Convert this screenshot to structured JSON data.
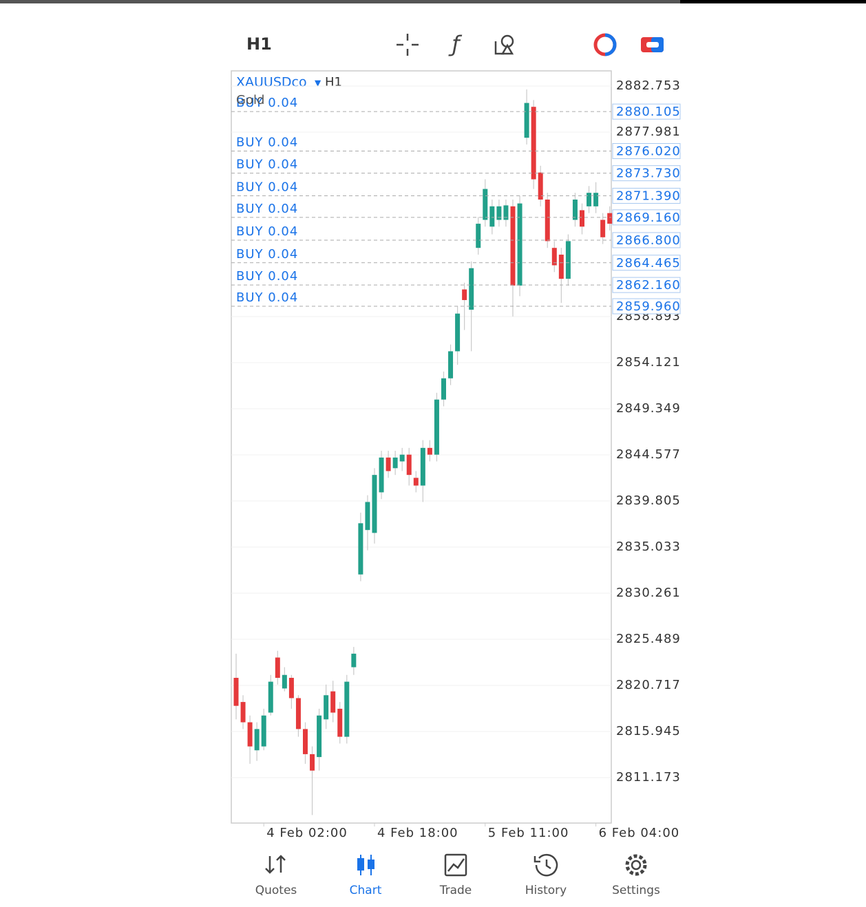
{
  "toolbar": {
    "timeframe": "H1"
  },
  "chart": {
    "type": "candlestick",
    "symbol": "XAUUSDco",
    "timeframe": "H1",
    "description": "Gold",
    "up_color": "#22a08a",
    "down_color": "#e5393b",
    "ylim": [
      2806.47,
      2884.32
    ],
    "yticks": [
      2882.753,
      2877.981,
      2858.893,
      2854.121,
      2849.349,
      2844.577,
      2839.805,
      2835.033,
      2830.261,
      2825.489,
      2820.717,
      2815.945,
      2811.173
    ],
    "orders": [
      {
        "label": "BUY 0.04",
        "price": {
          "value": 2880.105,
          "label": "2880.105"
        }
      },
      {
        "label": "BUY 0.04",
        "price": {
          "value": 2876.02,
          "label": "2876.020"
        }
      },
      {
        "label": "BUY 0.04",
        "price": {
          "value": 2873.73,
          "label": "2873.730"
        }
      },
      {
        "label": "BUY 0.04",
        "price": {
          "value": 2871.39,
          "label": "2871.390"
        }
      },
      {
        "label": "BUY 0.04",
        "price": {
          "value": 2869.16,
          "label": "2869.160"
        }
      },
      {
        "label": "BUY 0.04",
        "price": {
          "value": 2866.8,
          "label": "2866.800"
        }
      },
      {
        "label": "BUY 0.04",
        "price": {
          "value": 2864.465,
          "label": "2864.465"
        }
      },
      {
        "label": "BUY 0.04",
        "price": {
          "value": 2862.16,
          "label": "2862.160"
        }
      },
      {
        "label": "BUY 0.04",
        "price": {
          "value": 2859.96,
          "label": "2859.960"
        }
      }
    ],
    "x_labels": [
      "4 Feb 02:00",
      "4 Feb 18:00",
      "5 Feb 11:00",
      "6 Feb 04:00"
    ],
    "candles": {
      "open": [
        2821.5,
        2819.0,
        2816.9,
        2814.0,
        2814.4,
        2817.9,
        2823.6,
        2820.4,
        2821.5,
        2819.4,
        2816.2,
        2813.6,
        2813.3,
        2817.2,
        2820.1,
        2818.3,
        2815.4,
        2822.6,
        2832.2,
        2836.8,
        2836.5,
        2840.7,
        2844.3,
        2843.2,
        2843.9,
        2844.6,
        2842.2,
        2841.4,
        2845.3,
        2844.6,
        2850.3,
        2852.5,
        2855.3,
        2861.7,
        2859.6,
        2866.0,
        2868.9,
        2868.2,
        2868.9,
        2868.9,
        2870.3,
        2862.1,
        2877.4,
        2880.6,
        2873.8,
        2871.0,
        2866.0,
        2865.3,
        2862.8,
        2868.9,
        2869.9,
        2870.3,
        2870.3,
        2868.9,
        2869.6
      ],
      "high": [
        2824.0,
        2819.7,
        2817.6,
        2816.9,
        2818.3,
        2821.8,
        2824.3,
        2822.6,
        2821.8,
        2819.7,
        2816.9,
        2814.4,
        2818.3,
        2820.8,
        2821.2,
        2819.0,
        2821.8,
        2824.7,
        2838.6,
        2840.4,
        2843.2,
        2845.0,
        2845.0,
        2845.0,
        2845.3,
        2845.3,
        2842.9,
        2846.1,
        2846.1,
        2851.0,
        2853.2,
        2856.0,
        2860.0,
        2862.4,
        2864.6,
        2869.2,
        2873.1,
        2871.0,
        2871.0,
        2871.0,
        2871.0,
        2871.4,
        2882.4,
        2881.3,
        2874.5,
        2871.7,
        2866.7,
        2866.0,
        2867.4,
        2871.7,
        2870.6,
        2872.4,
        2872.8,
        2869.6,
        2870.3
      ],
      "low": [
        2817.2,
        2816.2,
        2812.6,
        2812.9,
        2814.0,
        2817.6,
        2820.8,
        2820.1,
        2818.3,
        2815.4,
        2812.6,
        2807.3,
        2811.9,
        2816.2,
        2816.9,
        2814.7,
        2814.7,
        2821.8,
        2831.5,
        2834.7,
        2835.4,
        2840.0,
        2842.2,
        2842.5,
        2842.9,
        2841.4,
        2840.7,
        2839.7,
        2843.9,
        2843.9,
        2849.6,
        2851.8,
        2853.9,
        2857.5,
        2855.3,
        2865.3,
        2868.2,
        2867.4,
        2868.2,
        2868.2,
        2858.9,
        2861.0,
        2876.7,
        2872.1,
        2870.3,
        2866.0,
        2863.5,
        2860.3,
        2862.1,
        2868.2,
        2867.4,
        2869.6,
        2869.6,
        2866.4,
        2867.8
      ],
      "close": [
        2818.6,
        2816.9,
        2814.4,
        2816.2,
        2817.6,
        2821.1,
        2821.5,
        2821.8,
        2819.4,
        2816.2,
        2813.6,
        2811.9,
        2817.6,
        2819.7,
        2817.9,
        2815.4,
        2821.1,
        2824.0,
        2837.5,
        2839.7,
        2842.5,
        2844.3,
        2842.9,
        2844.3,
        2844.6,
        2842.5,
        2841.4,
        2845.3,
        2844.6,
        2850.3,
        2852.5,
        2855.3,
        2859.2,
        2860.6,
        2863.9,
        2868.5,
        2872.1,
        2870.3,
        2870.3,
        2870.4,
        2862.1,
        2870.6,
        2881.0,
        2873.1,
        2871.0,
        2866.7,
        2864.2,
        2862.8,
        2866.7,
        2871.0,
        2868.2,
        2871.7,
        2871.7,
        2867.1,
        2868.5
      ]
    }
  },
  "nav": [
    {
      "label": "Quotes",
      "selected": false
    },
    {
      "label": "Chart",
      "selected": true
    },
    {
      "label": "Trade",
      "selected": false
    },
    {
      "label": "History",
      "selected": false
    },
    {
      "label": "Settings",
      "selected": false
    }
  ]
}
